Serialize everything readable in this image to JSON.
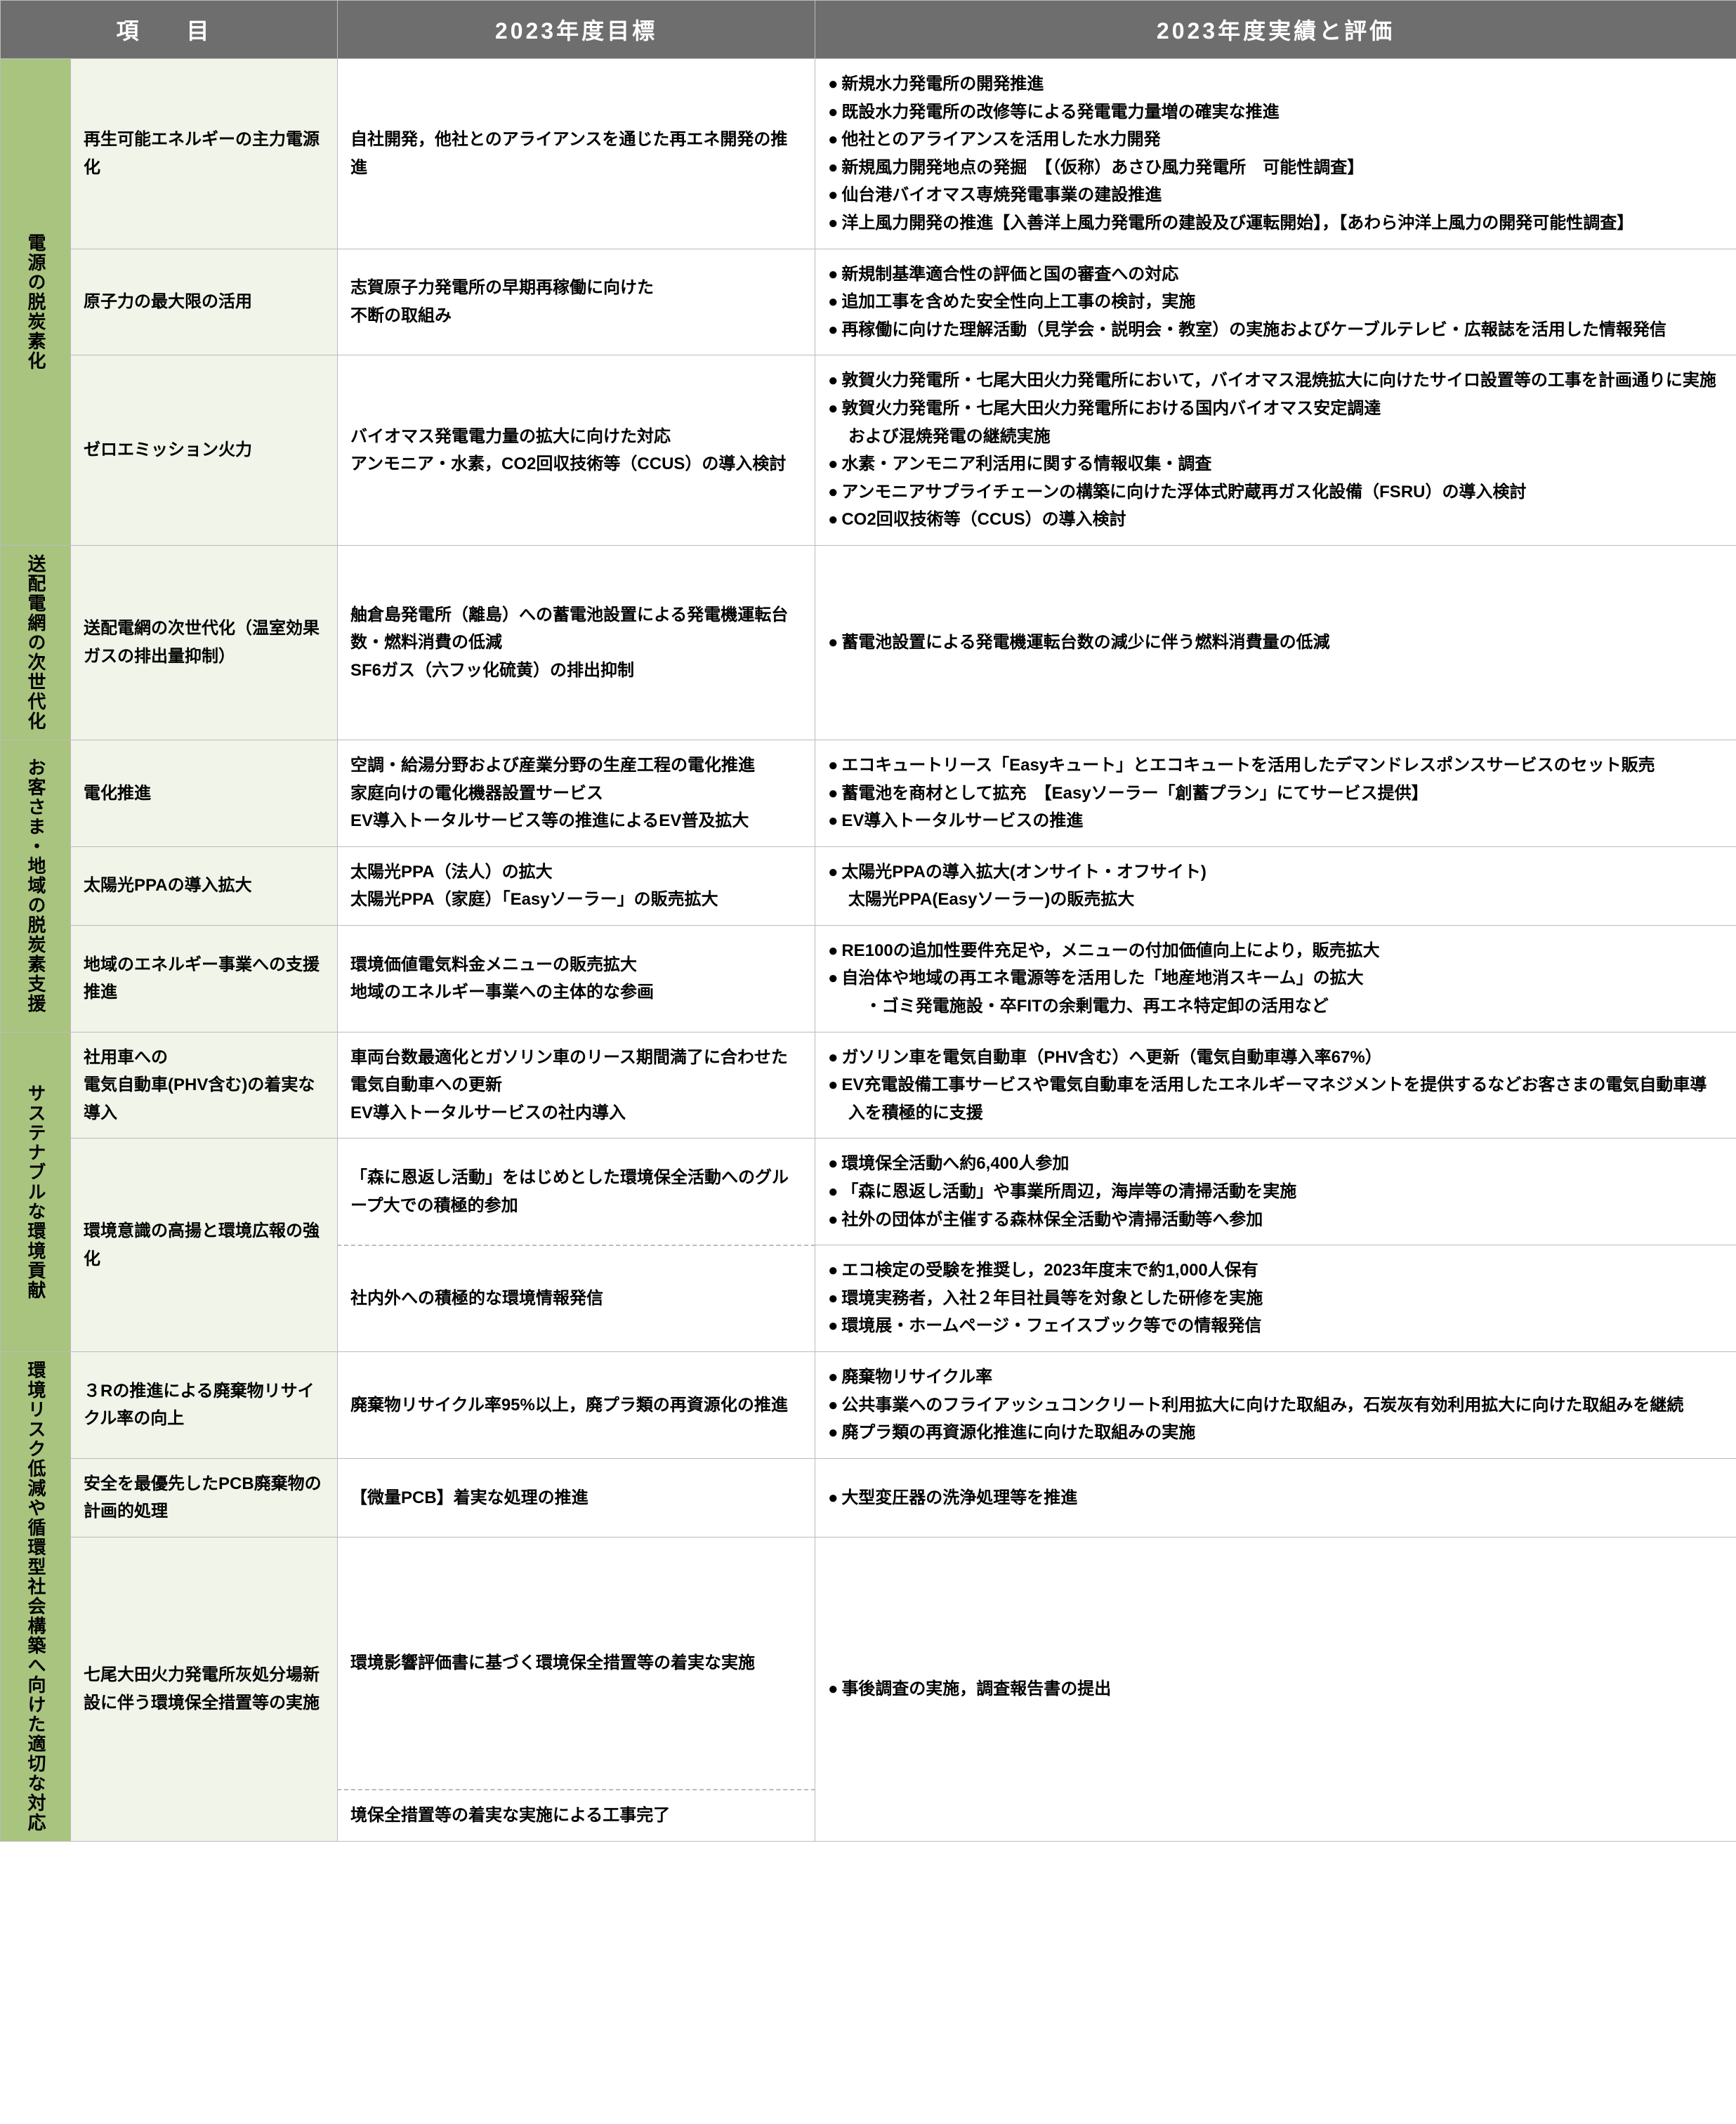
{
  "headers": {
    "item": "項　目",
    "target": "2023年度目標",
    "result": "2023年度実績と評価"
  },
  "categories": [
    {
      "name": "電源の脱炭素化",
      "rows": [
        {
          "sub": "再生可能エネルギーの主力電源化",
          "target": "自社開発，他社とのアライアンスを通じた再エネ開発の推進",
          "results": [
            "新規水力発電所の開発推進",
            "既設水力発電所の改修等による発電電力量増の確実な推進",
            "他社とのアライアンスを活用した水力開発",
            "新規風力開発地点の発掘　【（仮称）あさひ風力発電所　可能性調査】",
            "仙台港バイオマス専焼発電事業の建設推進",
            "洋上風力開発の推進【入善洋上風力発電所の建設及び運転開始】，【あわら沖洋上風力の開発可能性調査】"
          ]
        },
        {
          "sub": "原子力の最大限の活用",
          "target": "志賀原子力発電所の早期再稼働に向けた\n不断の取組み",
          "results": [
            "新規制基準適合性の評価と国の審査への対応",
            "追加工事を含めた安全性向上工事の検討，実施",
            "再稼働に向けた理解活動（見学会・説明会・教室）の実施およびケーブルテレビ・広報誌を活用した情報発信"
          ]
        },
        {
          "sub": "ゼロエミッション火力",
          "target": "バイオマス発電電力量の拡大に向けた対応\nアンモニア・水素，CO2回収技術等（CCUS）の導入検討",
          "results": [
            "敦賀火力発電所・七尾大田火力発電所において，バイオマス混焼拡大に向けたサイロ設置等の工事を計画通りに実施",
            "敦賀火力発電所・七尾大田火力発電所における国内バイオマス安定調達\nおよび混焼発電の継続実施",
            "水素・アンモニア利活用に関する情報収集・調査",
            "アンモニアサプライチェーンの構築に向けた浮体式貯蔵再ガス化設備（FSRU）の導入検討",
            "CO2回収技術等（CCUS）の導入検討"
          ]
        }
      ]
    },
    {
      "name": "送配電網の次世代化",
      "rows": [
        {
          "sub": "送配電網の次世代化（温室効果ガスの排出量抑制）",
          "target": "舳倉島発電所（離島）への蓄電池設置による発電機運転台数・燃料消費の低減\nSF6ガス（六フッ化硫黄）の排出抑制",
          "results": [
            "蓄電池設置による発電機運転台数の減少に伴う燃料消費量の低減"
          ]
        }
      ]
    },
    {
      "name": "お客さま・地域の脱炭素支援",
      "rows": [
        {
          "sub": "電化推進",
          "target": "空調・給湯分野および産業分野の生産工程の電化推進\n家庭向けの電化機器設置サービス\nEV導入トータルサービス等の推進によるEV普及拡大",
          "results": [
            "エコキュートリース「Easyキュート」とエコキュートを活用したデマンドレスポンスサービスのセット販売",
            "蓄電池を商材として拡充　【Easyソーラー「創蓄プラン」にてサービス提供】",
            "EV導入トータルサービスの推進"
          ]
        },
        {
          "sub": "太陽光PPAの導入拡大",
          "target": "太陽光PPA（法人）の拡大\n太陽光PPA（家庭）「Easyソーラー」の販売拡大",
          "results": [
            "太陽光PPAの導入拡大(オンサイト・オフサイト)\n太陽光PPA(Easyソーラー)の販売拡大"
          ]
        },
        {
          "sub": "地域のエネルギー事業への支援推進",
          "target": "環境価値電気料金メニューの販売拡大\n地域のエネルギー事業への主体的な参画",
          "results": [
            "RE100の追加性要件充足や，メニューの付加価値向上により，販売拡大",
            "自治体や地域の再エネ電源等を活用した「地産地消スキーム」の拡大\n　・ゴミ発電施設・卒FITの余剰電力、再エネ特定卸の活用など"
          ]
        }
      ]
    },
    {
      "name": "サステナブルな環境貢献",
      "rows": [
        {
          "sub": "社用車への\n電気自動車(PHV含む)の着実な導入",
          "target": "車両台数最適化とガソリン車のリース期間満了に合わせた電気自動車への更新\nEV導入トータルサービスの社内導入",
          "results": [
            "ガソリン車を電気自動車（PHV含む）へ更新（電気自動車導入率67%）",
            "EV充電設備工事サービスや電気自動車を活用したエネルギーマネジメントを提供するなどお客さまの電気自動車導入を積極的に支援"
          ]
        },
        {
          "sub": "環境意識の高揚と環境広報の強化",
          "sub_rowspan": 2,
          "target": "「森に恩返し活動」をはじめとした環境保全活動へのグループ大での積極的参加",
          "dashed_below": true,
          "results": [
            "環境保全活動へ約6,400人参加",
            "「森に恩返し活動」や事業所周辺，海岸等の清掃活動を実施",
            "社外の団体が主催する森林保全活動や清掃活動等へ参加"
          ]
        },
        {
          "skip_sub": true,
          "target": "社内外への積極的な環境情報発信",
          "dashed_top": true,
          "results": [
            "エコ検定の受験を推奨し，2023年度末で約1,000人保有",
            "環境実務者，入社２年目社員等を対象とした研修を実施",
            "環境展・ホームページ・フェイスブック等での情報発信"
          ]
        }
      ]
    },
    {
      "name": "環境リスク低減や循環型社会構築へ向けた適切な対応",
      "rows": [
        {
          "sub": "３Rの推進による廃棄物リサイクル率の向上",
          "target": "廃棄物リサイクル率95%以上，廃プラ類の再資源化の推進",
          "results": [
            "廃棄物リサイクル率",
            "公共事業へのフライアッシュコンクリート利用拡大に向けた取組み，石炭灰有効利用拡大に向けた取組みを継続",
            "廃プラ類の再資源化推進に向けた取組みの実施"
          ]
        },
        {
          "sub": "安全を最優先したPCB廃棄物の計画的処理",
          "target": "【微量PCB】着実な処理の推進",
          "results": [
            "大型変圧器の洗浄処理等を推進"
          ]
        },
        {
          "sub": "七尾大田火力発電所灰処分場新設に伴う環境保全措置等の実施",
          "sub_rowspan": 2,
          "target": "環境影響評価書に基づく環境保全措置等の着実な実施",
          "dashed_below": true,
          "result_rowspan": 2,
          "results": [
            "事後調査の実施，調査報告書の提出"
          ]
        },
        {
          "skip_sub": true,
          "skip_result": true,
          "target": "境保全措置等の着実な実施による工事完了",
          "dashed_top": true
        }
      ]
    }
  ]
}
